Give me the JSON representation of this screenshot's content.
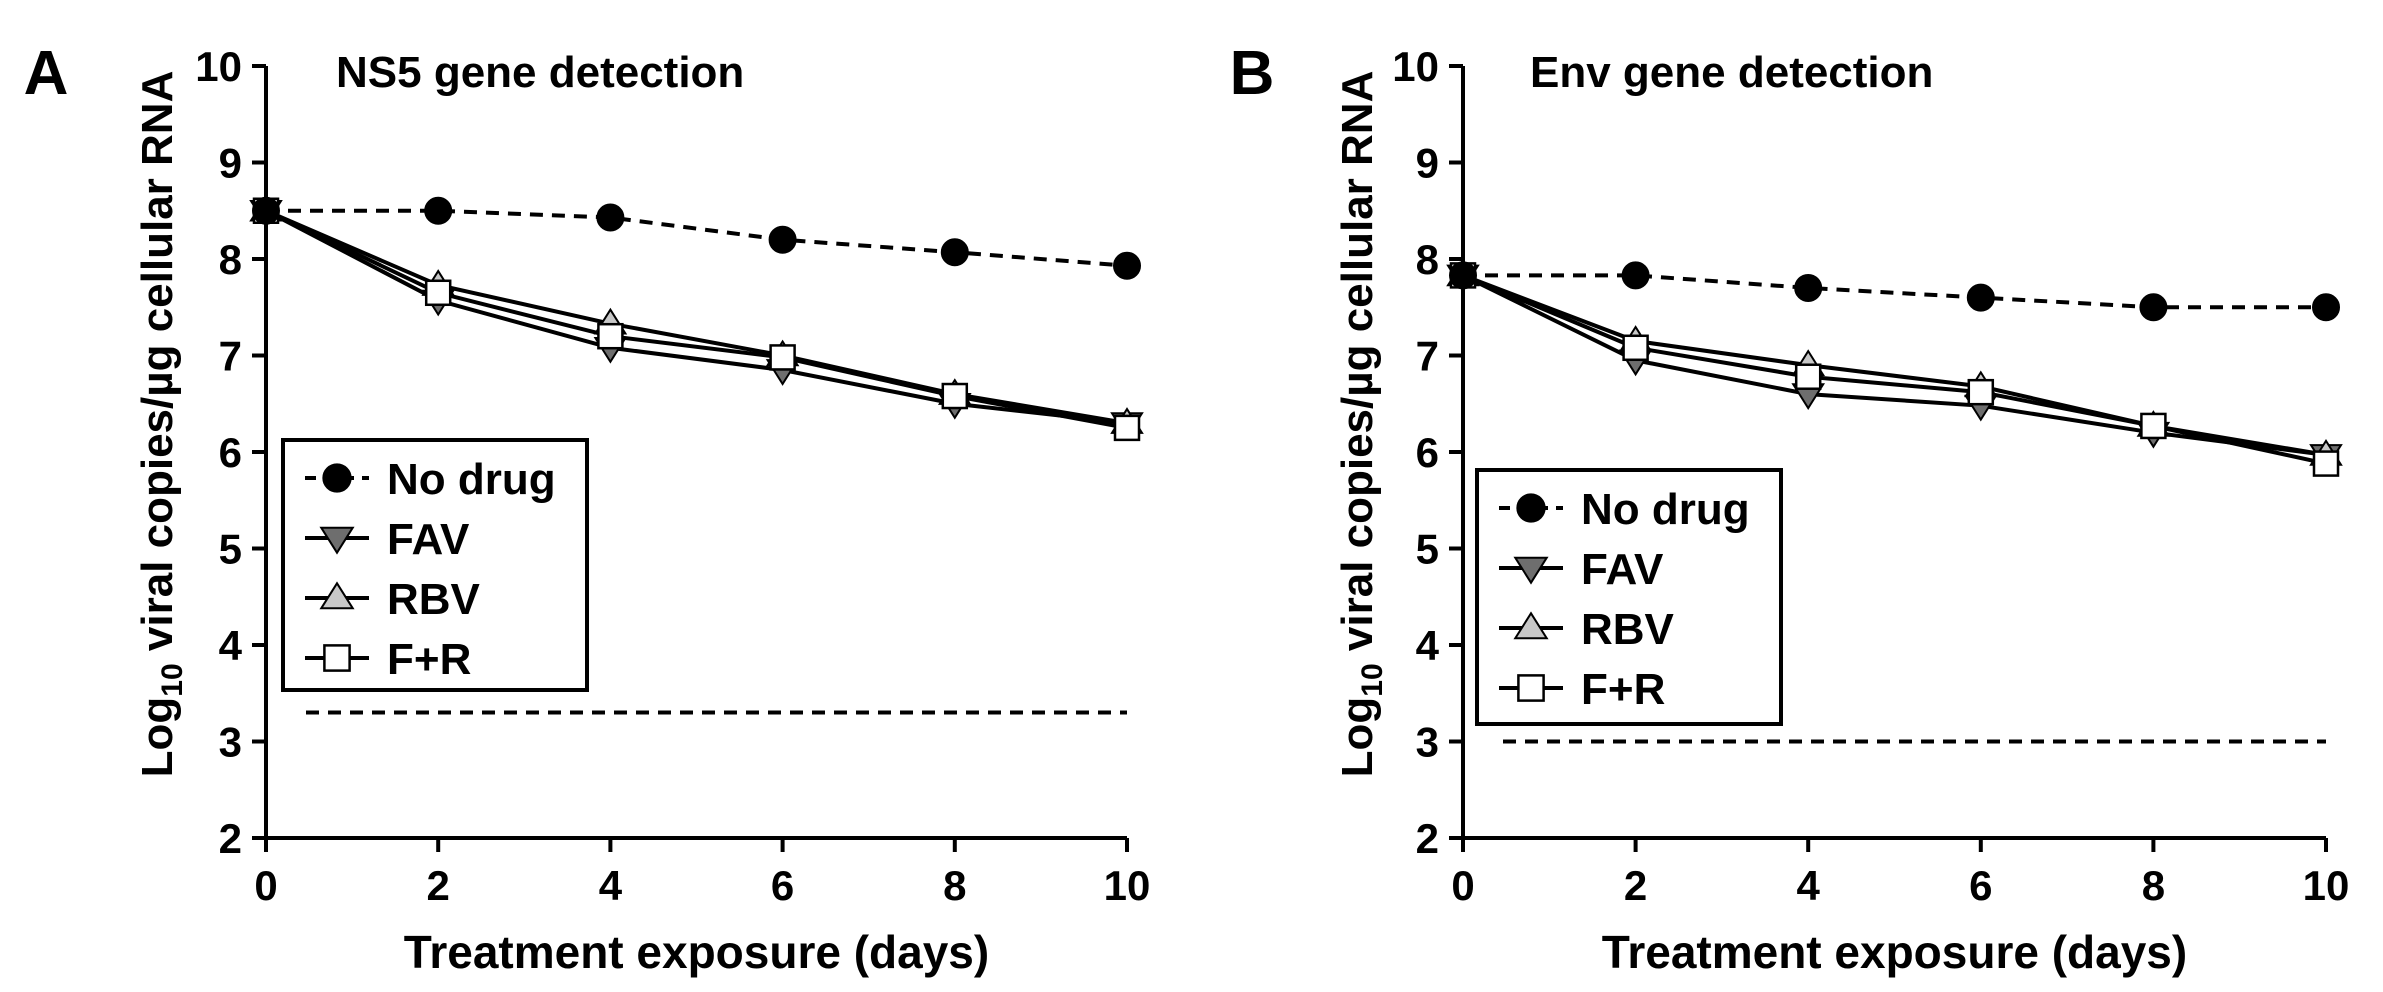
{
  "chart_data": [
    {
      "type": "line",
      "panel_label": "A",
      "title": "NS5 gene detection",
      "xlabel": "Treatment exposure (days)",
      "ylabel_prefix": "Log",
      "ylabel_sub": "10",
      "ylabel_suffix": " viral copies/µg cellular RNA",
      "x": [
        0,
        2,
        4,
        6,
        8,
        10
      ],
      "xlim": [
        0,
        10
      ],
      "ylim": [
        2,
        10
      ],
      "x_ticks": [
        "0",
        "2",
        "4",
        "6",
        "8",
        "10"
      ],
      "y_ticks": [
        "2",
        "3",
        "4",
        "5",
        "6",
        "7",
        "8",
        "9",
        "10"
      ],
      "detection_limit": 3.3,
      "legend_position": "lower-left",
      "series": [
        {
          "name": "No drug",
          "marker": "circle",
          "line": "dashed",
          "values": [
            8.5,
            8.5,
            8.43,
            8.2,
            8.07,
            7.93
          ]
        },
        {
          "name": "FAV",
          "marker": "triangle-down",
          "line": "solid",
          "values": [
            8.5,
            7.57,
            7.08,
            6.85,
            6.5,
            6.3
          ]
        },
        {
          "name": "RBV",
          "marker": "triangle-up",
          "line": "solid",
          "values": [
            8.5,
            7.73,
            7.33,
            7.0,
            6.6,
            6.3
          ]
        },
        {
          "name": "F+R",
          "marker": "square",
          "line": "solid",
          "values": [
            8.5,
            7.65,
            7.2,
            6.98,
            6.58,
            6.25
          ]
        }
      ]
    },
    {
      "type": "line",
      "panel_label": "B",
      "title": "Env gene detection",
      "xlabel": "Treatment exposure (days)",
      "ylabel_prefix": "Log",
      "ylabel_sub": "10",
      "ylabel_suffix": " viral copies/µg cellular RNA",
      "x": [
        0,
        2,
        4,
        6,
        8,
        10
      ],
      "xlim": [
        0,
        10
      ],
      "ylim": [
        2,
        10
      ],
      "x_ticks": [
        "0",
        "2",
        "4",
        "6",
        "8",
        "10"
      ],
      "y_ticks": [
        "2",
        "3",
        "4",
        "5",
        "6",
        "7",
        "8",
        "9",
        "10"
      ],
      "detection_limit": 3.0,
      "legend_position": "lower-left",
      "series": [
        {
          "name": "No drug",
          "marker": "circle",
          "line": "dashed",
          "values": [
            7.83,
            7.83,
            7.7,
            7.6,
            7.5,
            7.5
          ]
        },
        {
          "name": "FAV",
          "marker": "triangle-down",
          "line": "solid",
          "values": [
            7.83,
            6.95,
            6.6,
            6.48,
            6.2,
            5.97
          ]
        },
        {
          "name": "RBV",
          "marker": "triangle-up",
          "line": "solid",
          "values": [
            7.83,
            7.15,
            6.9,
            6.68,
            6.27,
            5.97
          ]
        },
        {
          "name": "F+R",
          "marker": "square",
          "line": "solid",
          "values": [
            7.83,
            7.08,
            6.78,
            6.62,
            6.27,
            5.88
          ]
        }
      ]
    }
  ],
  "colors": {
    "axis": "#000000",
    "no_drug_marker": "#000000",
    "fav_marker": "#6e6e6e",
    "rbv_marker": "#c8c8c8",
    "fr_marker": "#ffffff"
  }
}
